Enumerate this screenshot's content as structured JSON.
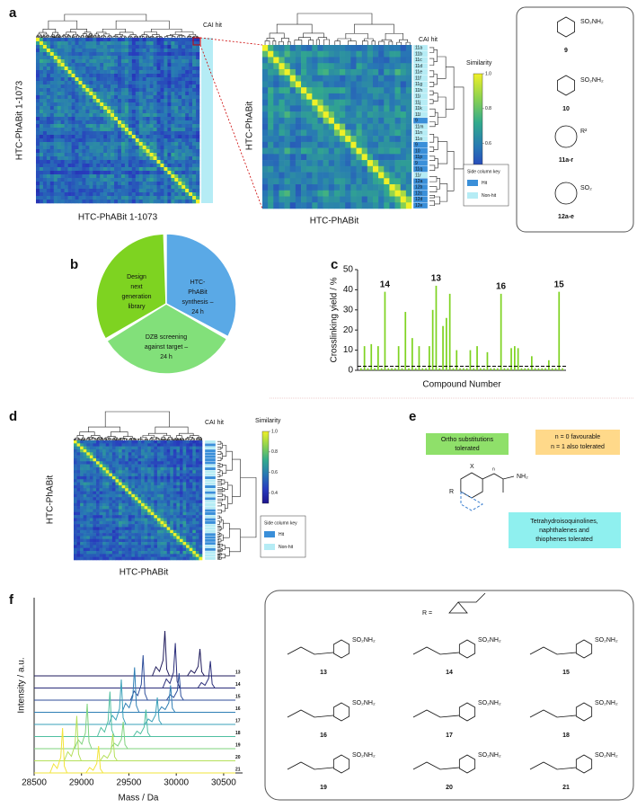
{
  "panels": {
    "a": {
      "letter": "a",
      "left_heatmap": {
        "cai_hit": "CAI hit",
        "x_label": "HTC-PhABit 1-1073",
        "y_label": "HTC-PhABit 1-1073"
      },
      "middle_heatmap": {
        "cai_hit": "CAI hit",
        "x_label": "HTC-PhABit",
        "y_label": "HTC-PhABit",
        "rows": [
          {
            "label": "11a",
            "hit": false
          },
          {
            "label": "11b",
            "hit": false
          },
          {
            "label": "11c",
            "hit": false
          },
          {
            "label": "11d",
            "hit": false
          },
          {
            "label": "11e",
            "hit": false
          },
          {
            "label": "11f",
            "hit": false
          },
          {
            "label": "11g",
            "hit": false
          },
          {
            "label": "11h",
            "hit": false
          },
          {
            "label": "11i",
            "hit": false
          },
          {
            "label": "11j",
            "hit": false
          },
          {
            "label": "11k",
            "hit": false
          },
          {
            "label": "11l",
            "hit": false
          },
          {
            "label": "9",
            "hit": true
          },
          {
            "label": "11m",
            "hit": false
          },
          {
            "label": "11n",
            "hit": false
          },
          {
            "label": "11o",
            "hit": false
          },
          {
            "label": "9",
            "hit": true
          },
          {
            "label": "10",
            "hit": true
          },
          {
            "label": "11p",
            "hit": true
          },
          {
            "label": "9",
            "hit": true
          },
          {
            "label": "11q",
            "hit": true
          },
          {
            "label": "11r",
            "hit": false
          },
          {
            "label": "12a",
            "hit": true
          },
          {
            "label": "12b",
            "hit": true
          },
          {
            "label": "12c",
            "hit": true
          },
          {
            "label": "12d",
            "hit": true
          },
          {
            "label": "12e",
            "hit": true
          }
        ],
        "colorbar_title": "Similarity",
        "colorbar_ticks": [
          {
            "value": 1.0,
            "label": "1.0"
          },
          0.8,
          0.6,
          0.4
        ],
        "key_title": "Side column key",
        "key_items": [
          "Hit",
          "Non-hit"
        ]
      },
      "structures": [
        {
          "group": "SO₂NH₂",
          "label": "9"
        },
        {
          "group": "SO₂NH₂",
          "label": "10"
        },
        {
          "group": "R²",
          "label": "11a-r"
        },
        {
          "group": "SO₂",
          "label": "12a-e"
        }
      ]
    },
    "b": {
      "letter": "b",
      "steps": [
        [
          "Design",
          "next",
          "generation",
          "library"
        ],
        [
          "HTC-",
          "PhABit",
          "synthesis –",
          "24 h"
        ],
        [
          "DZB screening",
          "against target –",
          "24 h"
        ]
      ]
    },
    "c": {
      "letter": "c",
      "type": "bar",
      "color": "#7ed321",
      "y_label": "Crosslinking yield / %",
      "x_label": "Compound Number",
      "ylim": [
        0,
        50
      ],
      "yticks": [
        0,
        10,
        20,
        30,
        40,
        50
      ],
      "threshold": 2,
      "categories": [
        null,
        null,
        null,
        null,
        null,
        null,
        null,
        "14",
        null,
        null,
        null,
        null,
        null,
        null,
        null,
        null,
        null,
        null,
        null,
        null,
        null,
        null,
        "13",
        null,
        null,
        null,
        null,
        null,
        null,
        null,
        null,
        null,
        null,
        null,
        null,
        null,
        null,
        null,
        null,
        null,
        null,
        "16",
        null,
        null,
        null,
        null,
        null,
        null,
        null,
        null,
        null,
        null,
        null,
        null,
        null,
        null,
        null,
        null,
        "15",
        null
      ],
      "values": [
        1,
        12,
        1,
        13,
        1,
        12,
        1,
        39,
        1,
        1,
        1,
        12,
        1,
        29,
        1,
        16,
        1,
        12,
        1,
        1,
        12,
        30,
        42,
        1,
        22,
        26,
        38,
        1,
        10,
        1,
        1,
        1,
        10,
        1,
        12,
        1,
        1,
        9,
        1,
        1,
        1,
        38,
        1,
        1,
        11,
        12,
        11,
        1,
        1,
        1,
        7,
        1,
        1,
        1,
        1,
        5,
        1,
        1,
        39,
        1
      ]
    },
    "d": {
      "letter": "d",
      "cai_hit": "CAI hit",
      "x_label": "HTC-PhABit",
      "y_label": "HTC-PhABit",
      "colorbar_title": "Similarity",
      "colorbar_ticks": [
        {
          "value": 1.0,
          "label": "1.0"
        },
        0.8,
        0.6,
        0.4
      ],
      "key_title": "Side column key",
      "key_items": [
        "Hit",
        "Non-hit"
      ]
    },
    "e": {
      "letter": "e",
      "ortho": [
        "Ortho substitutions",
        "tolerated"
      ],
      "n_rule": [
        "n = 0 favourable",
        "n = 1 also tolerated"
      ],
      "rings": [
        "Tetrahydroisoquinolines,",
        "naphthalenes and",
        "thiophenes tolerated"
      ],
      "structure": {
        "x": "X",
        "r": "R",
        "group": "NH₂",
        "n": "n"
      }
    },
    "f": {
      "letter": "f",
      "type": "spectra",
      "y_label": "Intensity / a.u.",
      "x_label": "Mass / Da",
      "xlim": [
        28500,
        30700
      ],
      "xticks": [
        28500,
        29000,
        29500,
        30000,
        30500
      ],
      "series": [
        {
          "name": "13",
          "color": "#1f1b5c",
          "peaks": [
            29880,
            30250
          ]
        },
        {
          "name": "14",
          "color": "#2a2d7a",
          "peaks": [
            29990,
            30360
          ]
        },
        {
          "name": "15",
          "color": "#2e4e9a",
          "peaks": [
            29650,
            30030
          ]
        },
        {
          "name": "16",
          "color": "#2f7fb5",
          "peaks": [
            29560,
            29940
          ]
        },
        {
          "name": "17",
          "color": "#3aa0b8",
          "peaks": [
            29420,
            29800
          ]
        },
        {
          "name": "18",
          "color": "#4fbfa0",
          "peaks": [
            29300,
            29680
          ]
        },
        {
          "name": "19",
          "color": "#7fd37e",
          "peaks": [
            29060,
            29440
          ]
        },
        {
          "name": "20",
          "color": "#b5e05b",
          "peaks": [
            28950,
            29330
          ]
        },
        {
          "name": "21",
          "color": "#f2e43a",
          "peaks": [
            28800,
            29180
          ]
        }
      ],
      "r_def": "R =",
      "compounds": [
        {
          "label": "13",
          "group": "SO₂NH₂"
        },
        {
          "label": "14",
          "group": "SO₂NH₂"
        },
        {
          "label": "15",
          "group": "SO₂NH₂"
        },
        {
          "label": "16",
          "group": "SO₂NH₂"
        },
        {
          "label": "17",
          "group": "SO₂NH₂"
        },
        {
          "label": "18",
          "group": "SO₂NH₂"
        },
        {
          "label": "19",
          "group": "SO₂NH₂"
        },
        {
          "label": "20",
          "group": "SO₂NH₂"
        },
        {
          "label": "21",
          "group": "SO₂NH₂"
        }
      ]
    }
  }
}
